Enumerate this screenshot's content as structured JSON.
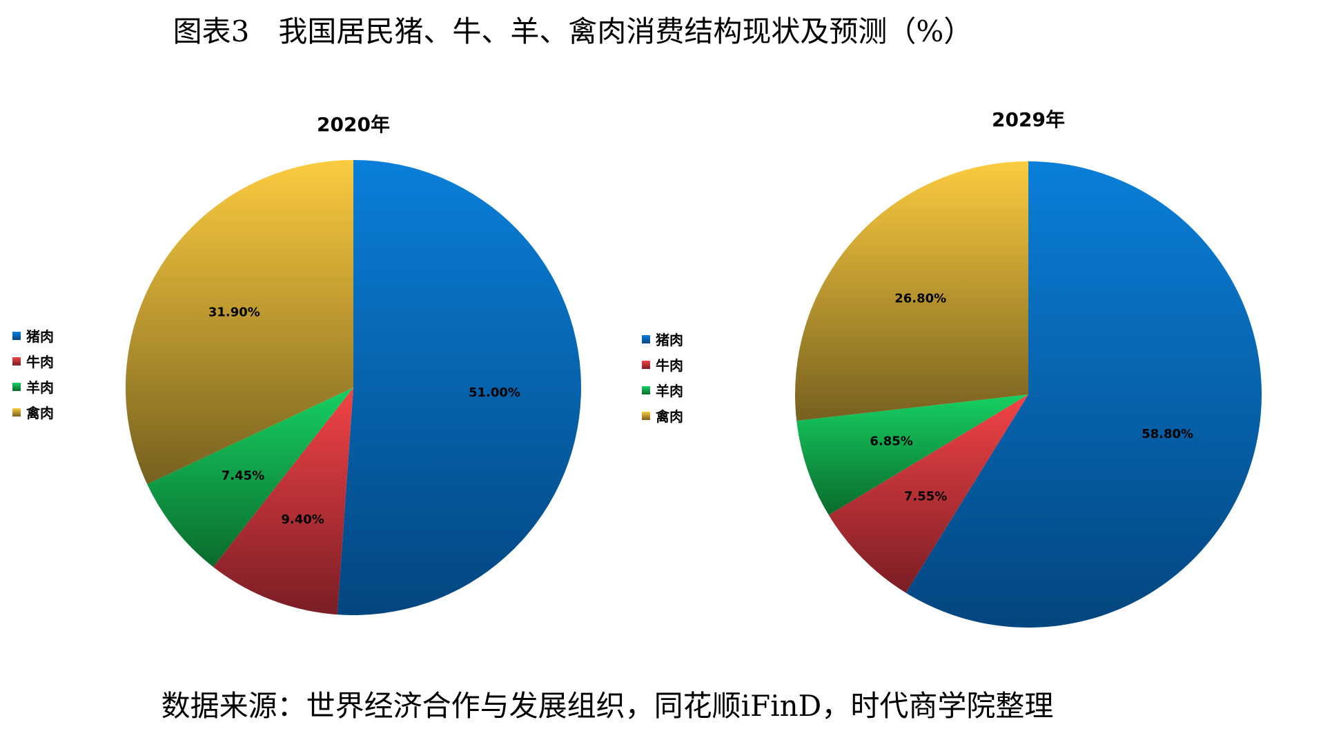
{
  "title": "图表3　我国居民猪、牛、羊、禽肉消费结构现状及预测（%）",
  "source": "数据来源：世界经济合作与发展组织，同花顺iFinD，时代商学院整理",
  "colors": {
    "pork": [
      "#0a7fd9",
      "#03467f"
    ],
    "beef": [
      "#f24446",
      "#7a1d25"
    ],
    "mutton": [
      "#16d062",
      "#0a6a2c"
    ],
    "poultry": [
      "#fccc3f",
      "#76601f"
    ]
  },
  "chart_data": [
    {
      "type": "pie",
      "title": "2020年",
      "legend_position": "left",
      "slices": [
        {
          "key": "pork",
          "label": "猪肉",
          "value": 51.0,
          "value_label": "51.00%"
        },
        {
          "key": "beef",
          "label": "牛肉",
          "value": 9.4,
          "value_label": "9.40%"
        },
        {
          "key": "mutton",
          "label": "羊肉",
          "value": 7.45,
          "value_label": "7.45%"
        },
        {
          "key": "poultry",
          "label": "禽肉",
          "value": 31.9,
          "value_label": "31.90%"
        }
      ]
    },
    {
      "type": "pie",
      "title": "2029年",
      "legend_position": "left",
      "slices": [
        {
          "key": "pork",
          "label": "猪肉",
          "value": 58.8,
          "value_label": "58.80%"
        },
        {
          "key": "beef",
          "label": "牛肉",
          "value": 7.55,
          "value_label": "7.55%"
        },
        {
          "key": "mutton",
          "label": "羊肉",
          "value": 6.85,
          "value_label": "6.85%"
        },
        {
          "key": "poultry",
          "label": "禽肉",
          "value": 26.8,
          "value_label": "26.80%"
        }
      ]
    }
  ]
}
